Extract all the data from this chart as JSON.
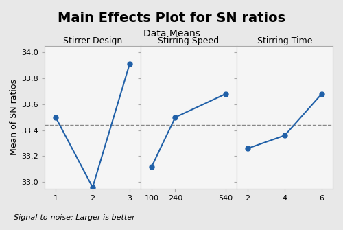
{
  "title": "Main Effects Plot for SN ratios",
  "subtitle": "Data Means",
  "ylabel": "Mean of SN ratios",
  "footnote": "Signal-to-noise: Larger is better",
  "panels": [
    {
      "label": "Stirrer Design",
      "x_ticks": [
        1,
        2,
        3
      ],
      "x_tick_labels": [
        "1",
        "2",
        "3"
      ],
      "y_values": [
        33.5,
        32.96,
        33.91
      ]
    },
    {
      "label": "Stirring Speed",
      "x_ticks": [
        100,
        240,
        540
      ],
      "x_tick_labels": [
        "100",
        "240",
        "540"
      ],
      "y_values": [
        33.12,
        33.5,
        33.68
      ]
    },
    {
      "label": "Stirring Time",
      "x_ticks": [
        2,
        4,
        6
      ],
      "x_tick_labels": [
        "2",
        "4",
        "6"
      ],
      "y_values": [
        33.26,
        33.36,
        33.68
      ]
    }
  ],
  "ylim": [
    32.95,
    34.05
  ],
  "yticks": [
    33.0,
    33.2,
    33.4,
    33.6,
    33.8,
    34.0
  ],
  "grand_mean": 33.44,
  "line_color": "#2060a8",
  "marker": "o",
  "marker_size": 5,
  "line_width": 1.5,
  "dashed_line_color": "#888888",
  "bg_color": "#e8e8e8",
  "plot_bg_color": "#f5f5f5",
  "title_fontsize": 14,
  "subtitle_fontsize": 10,
  "label_fontsize": 9,
  "tick_fontsize": 8,
  "ylabel_fontsize": 9
}
